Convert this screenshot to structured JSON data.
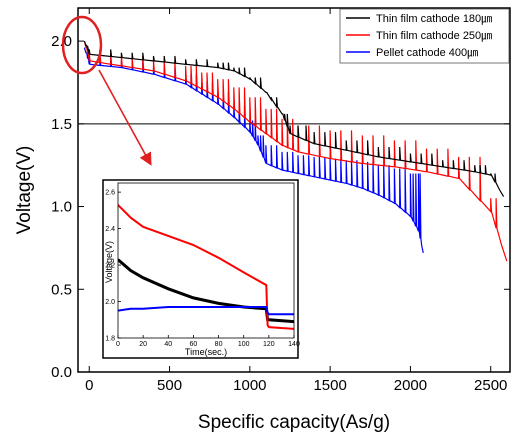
{
  "chart_data": [
    {
      "type": "line",
      "xlabel": "Specific capacity(As/g)",
      "ylabel": "Voltage(V)",
      "xlim": [
        -70,
        2620
      ],
      "ylim": [
        0.0,
        2.2
      ],
      "xticks": [
        0,
        500,
        1000,
        1500,
        2000,
        2500
      ],
      "yticks": [
        0.0,
        0.5,
        1.0,
        1.5,
        2.0
      ],
      "reference_line": {
        "y": 1.5,
        "color": "#000000"
      },
      "legend": {
        "placement": "top-right"
      },
      "series": [
        {
          "name": "Thin film cathode 180㎛",
          "color": "#000000",
          "x": [
            -30,
            0,
            200,
            400,
            600,
            800,
            900,
            1000,
            1100,
            1200,
            1250,
            1400,
            1600,
            1800,
            2000,
            2200,
            2400,
            2500,
            2580
          ],
          "y": [
            2.0,
            1.92,
            1.9,
            1.88,
            1.86,
            1.84,
            1.82,
            1.77,
            1.69,
            1.56,
            1.44,
            1.38,
            1.34,
            1.3,
            1.27,
            1.24,
            1.21,
            1.19,
            1.06
          ],
          "spike_to": [
            1.97,
            1.95,
            1.93,
            1.91,
            1.89,
            1.87,
            1.84,
            1.78,
            1.66,
            1.56,
            1.49,
            1.45,
            1.4,
            1.36,
            1.32,
            1.28,
            1.25,
            1.2
          ]
        },
        {
          "name": "Thin film cathode 250㎛",
          "color": "#ff0000",
          "x": [
            -30,
            0,
            200,
            400,
            600,
            700,
            800,
            900,
            1000,
            1100,
            1200,
            1300,
            1500,
            1700,
            1900,
            2100,
            2300,
            2500,
            2600
          ],
          "y": [
            2.0,
            1.88,
            1.85,
            1.82,
            1.76,
            1.71,
            1.66,
            1.59,
            1.51,
            1.44,
            1.37,
            1.33,
            1.29,
            1.26,
            1.24,
            1.21,
            1.17,
            0.97,
            0.67
          ],
          "spike_to": [
            1.95,
            1.93,
            1.91,
            1.88,
            1.85,
            1.81,
            1.77,
            1.72,
            1.66,
            1.59,
            1.53,
            1.49,
            1.46,
            1.43,
            1.4,
            1.35,
            1.3,
            1.05
          ]
        },
        {
          "name": "Pellet cathode 400㎛",
          "color": "#0000ff",
          "x": [
            -30,
            0,
            200,
            400,
            600,
            700,
            800,
            900,
            1000,
            1050,
            1100,
            1200,
            1300,
            1400,
            1500,
            1600,
            1700,
            1800,
            1900,
            2000,
            2050,
            2080
          ],
          "y": [
            1.96,
            1.86,
            1.84,
            1.8,
            1.74,
            1.68,
            1.62,
            1.54,
            1.45,
            1.37,
            1.26,
            1.22,
            1.2,
            1.18,
            1.16,
            1.14,
            1.11,
            1.07,
            1.02,
            0.94,
            0.85,
            0.72
          ],
          "spike_to": [
            1.93,
            1.91,
            1.88,
            1.84,
            1.8,
            1.75,
            1.69,
            1.61,
            1.52,
            1.43,
            1.37,
            1.33,
            1.31,
            1.3,
            1.29,
            1.28,
            1.27,
            1.25,
            1.23,
            1.2
          ]
        }
      ]
    },
    {
      "type": "line",
      "xlabel": "Time(sec.)",
      "ylabel": "Voltage(V)",
      "xlim": [
        0,
        140
      ],
      "ylim": [
        1.8,
        2.65
      ],
      "xticks": [
        0,
        20,
        40,
        60,
        80,
        100,
        120,
        140
      ],
      "yticks": [
        1.8,
        2.0,
        2.2,
        2.4,
        2.6
      ],
      "series": [
        {
          "color": "#000000",
          "x": [
            0,
            10,
            20,
            40,
            60,
            80,
            100,
            118,
            119,
            120,
            140
          ],
          "y": [
            2.23,
            2.17,
            2.13,
            2.07,
            2.02,
            1.99,
            1.97,
            1.96,
            1.9,
            1.9,
            1.89
          ]
        },
        {
          "color": "#ff0000",
          "x": [
            0,
            10,
            20,
            40,
            60,
            80,
            100,
            118,
            119,
            120,
            140
          ],
          "y": [
            2.53,
            2.46,
            2.41,
            2.36,
            2.31,
            2.24,
            2.16,
            2.09,
            1.87,
            1.86,
            1.85
          ]
        },
        {
          "color": "#0000ff",
          "x": [
            0,
            10,
            20,
            40,
            60,
            80,
            100,
            118,
            119,
            120,
            140
          ],
          "y": [
            1.95,
            1.96,
            1.96,
            1.97,
            1.97,
            1.97,
            1.97,
            1.97,
            1.94,
            1.93,
            1.93
          ]
        }
      ]
    }
  ]
}
